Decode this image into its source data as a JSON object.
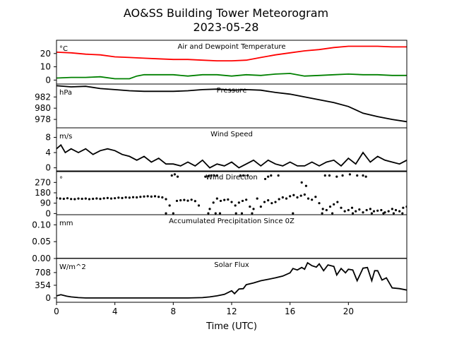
{
  "figure": {
    "title_line1": "AO&SS Building Tower Meteorogram",
    "title_line2": "2023-05-28",
    "xlabel": "Time (UTC)"
  },
  "chart_data": {
    "type": "line",
    "x_unit": "hours UTC",
    "xlim": [
      0,
      24
    ],
    "x_ticks": [
      0,
      4,
      8,
      12,
      16,
      20
    ],
    "panels": [
      {
        "key": "temp",
        "title": "Air and Dewpoint Temperature",
        "unit_label": "°C",
        "ylim": [
          -3,
          30
        ],
        "yticks": [
          0,
          10,
          20
        ],
        "series": [
          {
            "color": "#ff0000",
            "x": [
              0,
              1,
              2,
              3,
              4,
              5,
              6,
              7,
              8,
              9,
              10,
              11,
              12,
              13,
              14,
              15,
              16,
              17,
              18,
              19,
              20,
              21,
              22,
              23,
              24
            ],
            "y": [
              21,
              20.5,
              19.5,
              19,
              17.5,
              17,
              16.5,
              16,
              15.5,
              15.5,
              15,
              14.5,
              14.5,
              15,
              17,
              19,
              20.5,
              22,
              23,
              24.5,
              25.5,
              25.5,
              25.5,
              25,
              25
            ]
          },
          {
            "color": "#008000",
            "x": [
              0,
              1,
              2,
              3,
              4,
              5,
              5.5,
              6,
              7,
              8,
              9,
              10,
              11,
              12,
              13,
              14,
              15,
              16,
              17,
              18,
              19,
              20,
              21,
              22,
              23,
              24
            ],
            "y": [
              1.5,
              2,
              2,
              2.5,
              1,
              1,
              3,
              4,
              4,
              4,
              3,
              4,
              4,
              3,
              4,
              3.5,
              4.5,
              5,
              3,
              3.5,
              4,
              4.5,
              4,
              4,
              3.5,
              3.5
            ]
          }
        ]
      },
      {
        "key": "pressure",
        "title": "Pressure",
        "unit_label": "hPa",
        "ylim": [
          976.5,
          984.3
        ],
        "yticks": [
          978,
          980,
          982
        ],
        "series": [
          {
            "color": "#000000",
            "x": [
              0,
              1,
              2,
              3,
              4,
              5,
              6,
              7,
              8,
              9,
              10,
              11,
              12,
              13,
              14,
              15,
              16,
              17,
              18,
              19,
              20,
              20.5,
              21,
              22,
              23,
              24
            ],
            "y": [
              984,
              983.8,
              983.9,
              983.5,
              983.3,
              983.1,
              983,
              983,
              983,
              983.1,
              983.3,
              983.4,
              983.2,
              983.3,
              983.2,
              982.8,
              982.5,
              982,
              981.5,
              981,
              980.3,
              979.7,
              979.1,
              978.5,
              978.0,
              977.6
            ]
          }
        ]
      },
      {
        "key": "wind_speed",
        "title": "Wind Speed",
        "unit_label": "m/s",
        "ylim": [
          -1,
          10.5
        ],
        "yticks": [
          0,
          4,
          8
        ],
        "series": [
          {
            "color": "#000000",
            "x": [
              0,
              0.3,
              0.6,
              1,
              1.5,
              2,
              2.5,
              3,
              3.5,
              4,
              4.5,
              5,
              5.5,
              6,
              6.5,
              7,
              7.5,
              8,
              8.5,
              9,
              9.5,
              10,
              10.5,
              11,
              11.5,
              12,
              12.5,
              13,
              13.5,
              14,
              14.5,
              15,
              15.5,
              16,
              16.5,
              17,
              17.5,
              18,
              18.5,
              19,
              19.5,
              20,
              20.5,
              21,
              21.5,
              22,
              22.5,
              23,
              23.5,
              24
            ],
            "y": [
              5,
              6,
              4,
              5,
              4,
              5,
              3.5,
              4.5,
              5,
              4.5,
              3.5,
              3,
              2,
              3,
              1.5,
              2.5,
              1,
              1,
              0.5,
              1.5,
              0.5,
              2,
              0,
              1,
              0.5,
              1.5,
              0,
              1,
              2,
              0.5,
              2,
              1,
              0.5,
              1.5,
              0.5,
              0.5,
              1.5,
              0.5,
              1.5,
              2,
              0.5,
              2.5,
              1,
              4,
              1.5,
              3,
              2,
              1.5,
              1,
              2
            ]
          }
        ]
      },
      {
        "key": "wind_dir",
        "title": "Wind Direction",
        "unit_label": "°",
        "ylim": [
          -10,
          370
        ],
        "yticks": [
          0,
          90,
          180,
          270
        ],
        "style": "scatter",
        "series": [
          {
            "color": "#000000",
            "x": [
              0,
              0.25,
              0.5,
              0.75,
              1,
              1.25,
              1.5,
              1.75,
              2,
              2.25,
              2.5,
              2.75,
              3,
              3.25,
              3.5,
              3.75,
              4,
              4.25,
              4.5,
              4.75,
              5,
              5.25,
              5.5,
              5.75,
              6,
              6.25,
              6.5,
              6.75,
              7,
              7.25,
              7.5,
              7.75,
              8.25,
              8.5,
              8.75,
              9,
              9.25,
              9.5,
              9.75,
              10.5,
              10.75,
              11,
              11.25,
              11.5,
              11.75,
              12,
              12.25,
              12.5,
              12.75,
              13,
              13.25,
              13.5,
              13.75,
              14,
              14.25,
              14.5,
              14.75,
              15,
              15.25,
              15.5,
              15.75,
              16,
              16.25,
              16.5,
              16.75,
              17,
              17.25,
              17.5,
              17.75,
              18,
              18.25,
              18.5,
              18.75,
              19,
              19.25,
              19.5,
              19.75,
              20,
              20.25,
              20.5,
              20.75,
              21,
              21.25,
              21.5,
              21.75,
              22,
              22.25,
              22.5,
              22.75,
              23,
              23.25,
              23.5,
              23.75,
              24,
              7.9,
              8.1,
              8.3,
              10.2,
              10.4,
              10.6,
              10.8,
              11.0,
              12.6,
              12.8,
              13.1,
              14.3,
              14.5,
              14.7,
              15.2,
              16.8,
              17.1,
              18.4,
              18.7,
              19.2,
              19.6,
              20.1,
              20.6,
              21.0,
              21.2,
              7.5,
              8.0,
              10.4,
              10.9,
              11.2,
              12.3,
              12.7,
              13.4,
              16.2,
              18.2,
              18.9,
              20.3,
              21.6,
              22.4,
              23.1,
              23.7
            ],
            "y": [
              135,
              130,
              128,
              133,
              126,
              125,
              130,
              128,
              130,
              125,
              128,
              131,
              127,
              132,
              135,
              130,
              133,
              138,
              135,
              140,
              138,
              142,
              140,
              145,
              148,
              150,
              147,
              150,
              145,
              140,
              125,
              70,
              110,
              115,
              118,
              112,
              120,
              108,
              70,
              40,
              95,
              130,
              110,
              118,
              122,
              100,
              70,
              95,
              110,
              120,
              60,
              40,
              130,
              60,
              100,
              115,
              90,
              100,
              125,
              140,
              130,
              150,
              160,
              140,
              155,
              165,
              130,
              120,
              145,
              90,
              40,
              30,
              60,
              80,
              100,
              50,
              20,
              30,
              50,
              20,
              35,
              10,
              30,
              40,
              20,
              25,
              30,
              10,
              20,
              40,
              30,
              20,
              50,
              60,
              330,
              340,
              320,
              320,
              325,
              330,
              330,
              330,
              330,
              330,
              330,
              300,
              320,
              330,
              330,
              270,
              240,
              330,
              330,
              320,
              330,
              340,
              330,
              330,
              320,
              2,
              2,
              2,
              2,
              2,
              2,
              2,
              2,
              2,
              2,
              2,
              2,
              2,
              2,
              2,
              2
            ]
          }
        ]
      },
      {
        "key": "precip",
        "title": "Accumulated Precipitation Since 0Z",
        "unit_label": "mm",
        "ylim": [
          0,
          0.13
        ],
        "yticks": [
          0.0,
          0.05,
          0.1
        ],
        "ytick_labels": [
          "0.00",
          "0.05",
          "0.10"
        ],
        "series": [
          {
            "color": "#000000",
            "x": [
              0,
              24
            ],
            "y": [
              0,
              0
            ]
          }
        ]
      },
      {
        "key": "solar",
        "title": "Solar Flux",
        "unit_label": "W/m^2",
        "ylim": [
          -120,
          1100
        ],
        "yticks": [
          0,
          354,
          708
        ],
        "series": [
          {
            "color": "#000000",
            "x": [
              0,
              0.3,
              0.7,
              1,
              1.5,
              2,
              3,
              4,
              5,
              6,
              7,
              8,
              9,
              10,
              10.5,
              11,
              11.5,
              12,
              12.2,
              12.5,
              12.8,
              13,
              13.5,
              14,
              14.5,
              15,
              15.5,
              16,
              16.2,
              16.5,
              16.8,
              17,
              17.2,
              17.5,
              17.8,
              18,
              18.3,
              18.6,
              19,
              19.2,
              19.5,
              19.8,
              20,
              20.3,
              20.6,
              21,
              21.3,
              21.6,
              21.8,
              22,
              22.3,
              22.6,
              23,
              23.5,
              24
            ],
            "y": [
              60,
              90,
              50,
              30,
              10,
              0,
              0,
              0,
              0,
              0,
              0,
              0,
              0,
              10,
              30,
              60,
              100,
              200,
              120,
              250,
              260,
              370,
              420,
              480,
              520,
              560,
              610,
              700,
              820,
              780,
              850,
              800,
              980,
              900,
              860,
              950,
              760,
              920,
              880,
              640,
              820,
              700,
              800,
              780,
              480,
              830,
              850,
              480,
              760,
              760,
              500,
              560,
              280,
              260,
              220
            ]
          }
        ]
      }
    ]
  }
}
